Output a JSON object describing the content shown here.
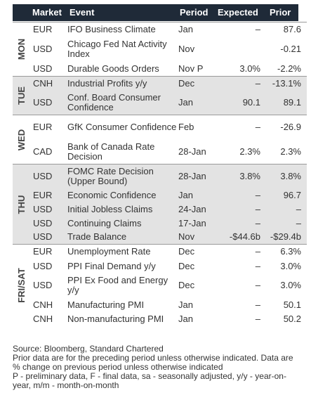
{
  "header": {
    "market": "Market",
    "event": "Event",
    "period": "Period",
    "expected": "Expected",
    "prior": "Prior"
  },
  "days": [
    {
      "label": "MON",
      "rows": [
        {
          "market": "EUR",
          "event": "IFO Business Climate",
          "period": "Jan",
          "expected": "–",
          "prior": "87.6"
        },
        {
          "market": "USD",
          "event": "Chicago Fed Nat Activity Index",
          "period": "Nov",
          "expected": "",
          "prior": "-0.21"
        },
        {
          "market": "USD",
          "event": "Durable Goods Orders",
          "period": "Nov P",
          "expected": "3.0%",
          "prior": "-2.2%"
        }
      ]
    },
    {
      "label": "TUE",
      "rows": [
        {
          "market": "CNH",
          "event": "Industrial Profits y/y",
          "period": "Dec",
          "expected": "–",
          "prior": "-13.1%"
        },
        {
          "market": "USD",
          "event": "Conf. Board Consumer Confidence",
          "period": "Jan",
          "expected": "90.1",
          "prior": "89.1"
        }
      ]
    },
    {
      "label": "WED",
      "rows": [
        {
          "market": "EUR",
          "event": "GfK Consumer Confidence",
          "period": "Feb",
          "expected": "–",
          "prior": "-26.9"
        },
        {
          "market": "CAD",
          "event": "Bank of Canada Rate Decision",
          "period": "28-Jan",
          "expected": "2.3%",
          "prior": "2.3%"
        }
      ]
    },
    {
      "label": "THU",
      "rows": [
        {
          "market": "USD",
          "event": "FOMC Rate Decision (Upper Bound)",
          "period": "28-Jan",
          "expected": "3.8%",
          "prior": "3.8%"
        },
        {
          "market": "EUR",
          "event": "Economic Confidence",
          "period": "Jan",
          "expected": "–",
          "prior": "96.7"
        },
        {
          "market": "USD",
          "event": "Initial Jobless Claims",
          "period": "24-Jan",
          "expected": "–",
          "prior": "–"
        },
        {
          "market": "USD",
          "event": "Continuing Claims",
          "period": "17-Jan",
          "expected": "–",
          "prior": "–"
        },
        {
          "market": "USD",
          "event": "Trade Balance",
          "period": "Nov",
          "expected": "-$44.6b",
          "prior": "-$29.4b"
        }
      ]
    },
    {
      "label": "FRI/SAT",
      "rows": [
        {
          "market": "EUR",
          "event": "Unemployment Rate",
          "period": "Dec",
          "expected": "–",
          "prior": "6.3%"
        },
        {
          "market": "USD",
          "event": "PPI Final Demand y/y",
          "period": "Dec",
          "expected": "–",
          "prior": "3.0%"
        },
        {
          "market": "USD",
          "event": "PPI Ex Food and Energy y/y",
          "period": "Dec",
          "expected": "–",
          "prior": "3.0%"
        },
        {
          "market": "CNH",
          "event": "Manufacturing PMI",
          "period": "Jan",
          "expected": "–",
          "prior": "50.1"
        },
        {
          "market": "CNH",
          "event": "Non-manufacturing PMI",
          "period": "Jan",
          "expected": "–",
          "prior": "50.2"
        }
      ]
    }
  ],
  "footer": {
    "source": "Source: Bloomberg, Standard Chartered",
    "note1": "Prior data are for the preceding period unless otherwise indicated. Data are % change on previous period unless otherwise indicated",
    "note2": "P - preliminary data, F - final data, sa - seasonally adjusted, y/y - year-on-year, m/m - month-on-month"
  }
}
